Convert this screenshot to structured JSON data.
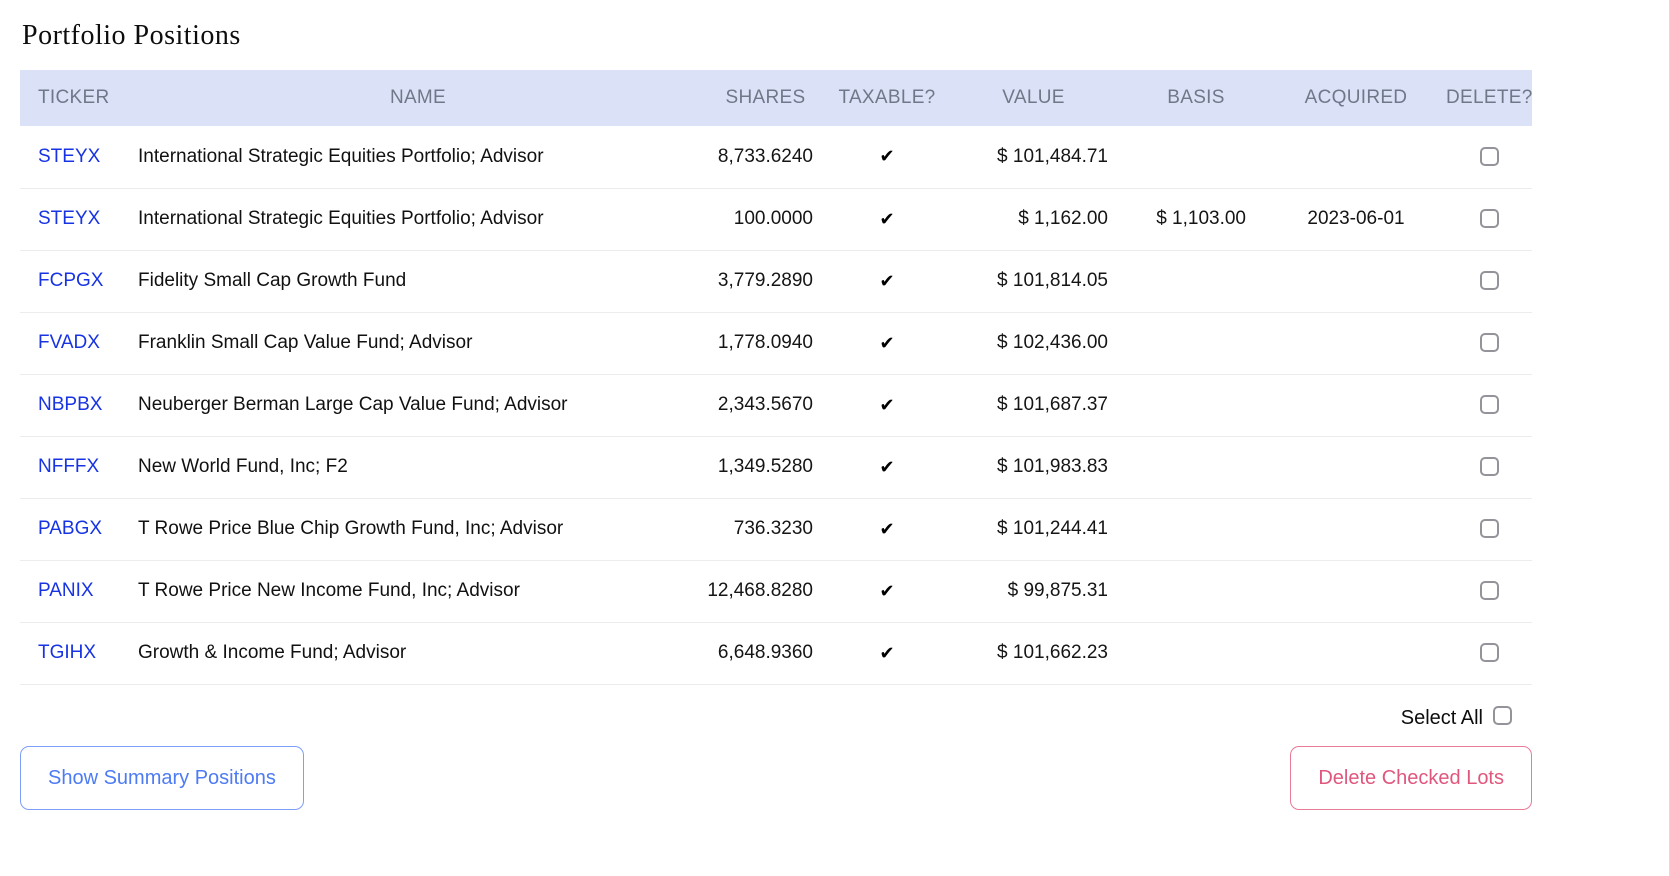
{
  "page": {
    "title": "Portfolio Positions"
  },
  "table": {
    "headers": [
      "TICKER",
      "NAME",
      "SHARES",
      "TAXABLE?",
      "VALUE",
      "BASIS",
      "ACQUIRED",
      "DELETE?"
    ],
    "rows": [
      {
        "ticker": "STEYX",
        "name": "International Strategic Equities Portfolio; Advisor",
        "shares": "8,733.6240",
        "taxable": "✔",
        "value": "$ 101,484.71",
        "basis": "",
        "acquired": ""
      },
      {
        "ticker": "STEYX",
        "name": "International Strategic Equities Portfolio; Advisor",
        "shares": "100.0000",
        "taxable": "✔",
        "value": "$ 1,162.00",
        "basis": "$ 1,103.00",
        "acquired": "2023-06-01"
      },
      {
        "ticker": "FCPGX",
        "name": "Fidelity Small Cap Growth Fund",
        "shares": "3,779.2890",
        "taxable": "✔",
        "value": "$ 101,814.05",
        "basis": "",
        "acquired": ""
      },
      {
        "ticker": "FVADX",
        "name": "Franklin Small Cap Value Fund; Advisor",
        "shares": "1,778.0940",
        "taxable": "✔",
        "value": "$ 102,436.00",
        "basis": "",
        "acquired": ""
      },
      {
        "ticker": "NBPBX",
        "name": "Neuberger Berman Large Cap Value Fund; Advisor",
        "shares": "2,343.5670",
        "taxable": "✔",
        "value": "$ 101,687.37",
        "basis": "",
        "acquired": ""
      },
      {
        "ticker": "NFFFX",
        "name": "New World Fund, Inc; F2",
        "shares": "1,349.5280",
        "taxable": "✔",
        "value": "$ 101,983.83",
        "basis": "",
        "acquired": ""
      },
      {
        "ticker": "PABGX",
        "name": "T Rowe Price Blue Chip Growth Fund, Inc; Advisor",
        "shares": "736.3230",
        "taxable": "✔",
        "value": "$ 101,244.41",
        "basis": "",
        "acquired": ""
      },
      {
        "ticker": "PANIX",
        "name": "T Rowe Price New Income Fund, Inc; Advisor",
        "shares": "12,468.8280",
        "taxable": "✔",
        "value": "$ 99,875.31",
        "basis": "",
        "acquired": ""
      },
      {
        "ticker": "TGIHX",
        "name": "Growth & Income Fund; Advisor",
        "shares": "6,648.9360",
        "taxable": "✔",
        "value": "$ 101,662.23",
        "basis": "",
        "acquired": ""
      }
    ]
  },
  "footer": {
    "select_all_label": "Select All",
    "show_summary_button": "Show Summary Positions",
    "delete_checked_button": "Delete Checked Lots"
  },
  "colors": {
    "header_bg": "#dbe2f8",
    "header_text": "#6f7888",
    "ticker_link": "#1733e3",
    "summary_button": "#4d7bf3",
    "delete_button": "#e0577e"
  }
}
